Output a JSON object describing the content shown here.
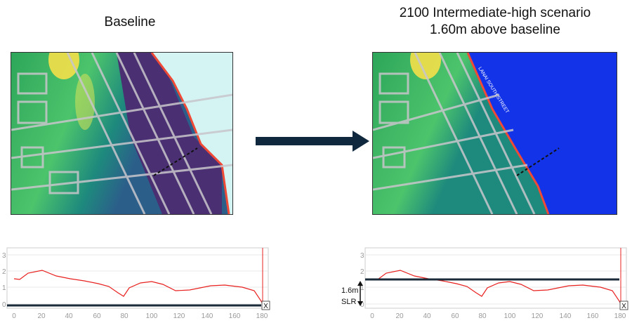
{
  "baseline": {
    "title": "Baseline",
    "profile": {
      "y_ticks": [
        "0",
        "1",
        "2",
        "3"
      ],
      "x_ticks": [
        "0",
        "20",
        "40",
        "60",
        "80",
        "100",
        "120",
        "140",
        "160",
        "180"
      ],
      "end_marker": "X"
    }
  },
  "scenario": {
    "title_line1": "2100 Intermediate-high scenario",
    "title_line2": "1.60m above baseline",
    "street_label": "LANAI SOUTH STREET",
    "annotation_line1": "1.6m",
    "annotation_line2": "SLR",
    "profile": {
      "y_ticks": [
        "0",
        "1",
        "2",
        "3"
      ],
      "x_ticks": [
        "0",
        "20",
        "40",
        "60",
        "80",
        "100",
        "120",
        "140",
        "160",
        "180"
      ],
      "end_marker": "X"
    }
  },
  "colors": {
    "terrain_green": "#3dbb63",
    "terrain_yellow": "#f4e04a",
    "road_gray": "#b9b7bd",
    "ocean_baseline": "#d4f4f4",
    "ocean_flooded": "#1233e8",
    "inland_purple": "#4a2f72",
    "shore_red": "#f04a37",
    "profile_line": "#e8211f",
    "water_line": "#1b2b3a",
    "arrow": "#10283d"
  }
}
